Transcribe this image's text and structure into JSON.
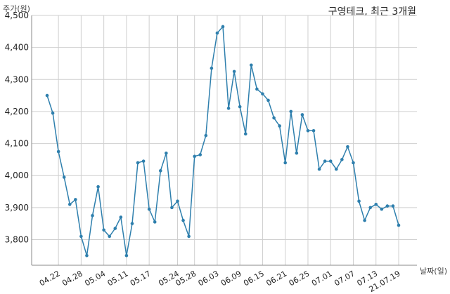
{
  "chart_data": {
    "type": "line",
    "title": "구영테크, 최근 3개월",
    "ylabel": "주가(원)",
    "xlabel": "날짜(일)",
    "ylim": [
      3720,
      4500
    ],
    "yticks": [
      3800,
      3900,
      4000,
      4100,
      4200,
      4300,
      4400,
      4500
    ],
    "ytick_labels": [
      "3,800",
      "3,900",
      "4,000",
      "4,100",
      "4,200",
      "4,300",
      "4,400",
      "4,500"
    ],
    "xtick_labels": [
      "04.22",
      "04.28",
      "05.04",
      "05.11",
      "05.17",
      "05.24",
      "05.28",
      "06.03",
      "06.09",
      "06.15",
      "06.21",
      "06.25",
      "07.01",
      "07.07",
      "07.13",
      "21.07.19"
    ],
    "xtick_index": [
      2,
      6,
      10,
      14,
      18,
      23,
      26,
      30,
      34,
      38,
      42,
      46,
      50,
      54,
      58,
      62
    ],
    "grid": true,
    "color": "#2e7fad",
    "series": [
      {
        "values": [
          4250,
          4195,
          4075,
          3995,
          3910,
          3925,
          3810,
          3750,
          3875,
          3965,
          3830,
          3810,
          3835,
          3870,
          3750,
          3850,
          4040,
          4045,
          3895,
          3855,
          4015,
          4070,
          3900,
          3920,
          3860,
          3810,
          4060,
          4065,
          4125,
          4335,
          4445,
          4465,
          4210,
          4325,
          4215,
          4130,
          4345,
          4270,
          4255,
          4235,
          4180,
          4155,
          4040,
          4200,
          4070,
          4190,
          4140,
          4140,
          4020,
          4045,
          4045,
          4020,
          4050,
          4090,
          4040,
          3920,
          3860,
          3900,
          3910,
          3895,
          3905,
          3905,
          3845
        ]
      }
    ]
  }
}
